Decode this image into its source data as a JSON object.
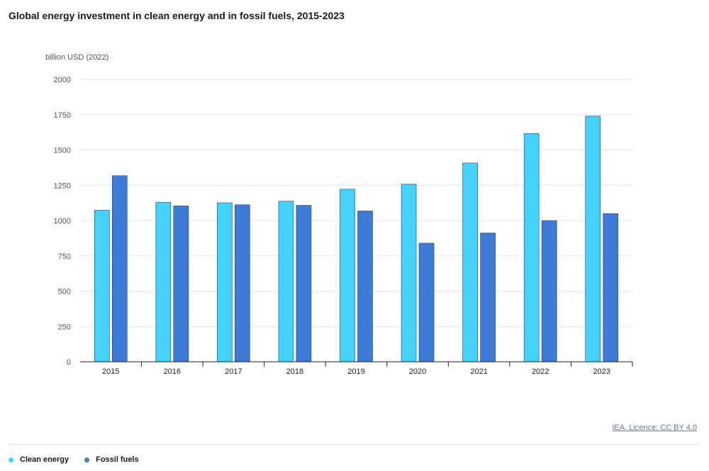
{
  "title": "Global energy investment in clean energy and in fossil fuels, 2015-2023",
  "source": "IEA. Licence: CC BY 4.0",
  "colors": {
    "clean": "#45d2fa",
    "fossil": "#3e7bd6"
  },
  "chart_data": {
    "type": "bar",
    "title": "Global energy investment in clean energy and in fossil fuels, 2015-2023",
    "ylabel": "billion USD (2022)",
    "xlabel": "",
    "categories": [
      "2015",
      "2016",
      "2017",
      "2018",
      "2019",
      "2020",
      "2021",
      "2022",
      "2023"
    ],
    "series": [
      {
        "name": "Clean energy",
        "values": [
          1073,
          1130,
          1126,
          1137,
          1222,
          1258,
          1408,
          1617,
          1740
        ]
      },
      {
        "name": "Fossil fuels",
        "values": [
          1318,
          1104,
          1112,
          1108,
          1068,
          840,
          912,
          1000,
          1050
        ]
      }
    ],
    "ylim": [
      0,
      2000
    ],
    "yticks": [
      0,
      250,
      500,
      750,
      1000,
      1250,
      1500,
      1750,
      2000
    ],
    "grid": true,
    "legend": "bottom-left"
  }
}
